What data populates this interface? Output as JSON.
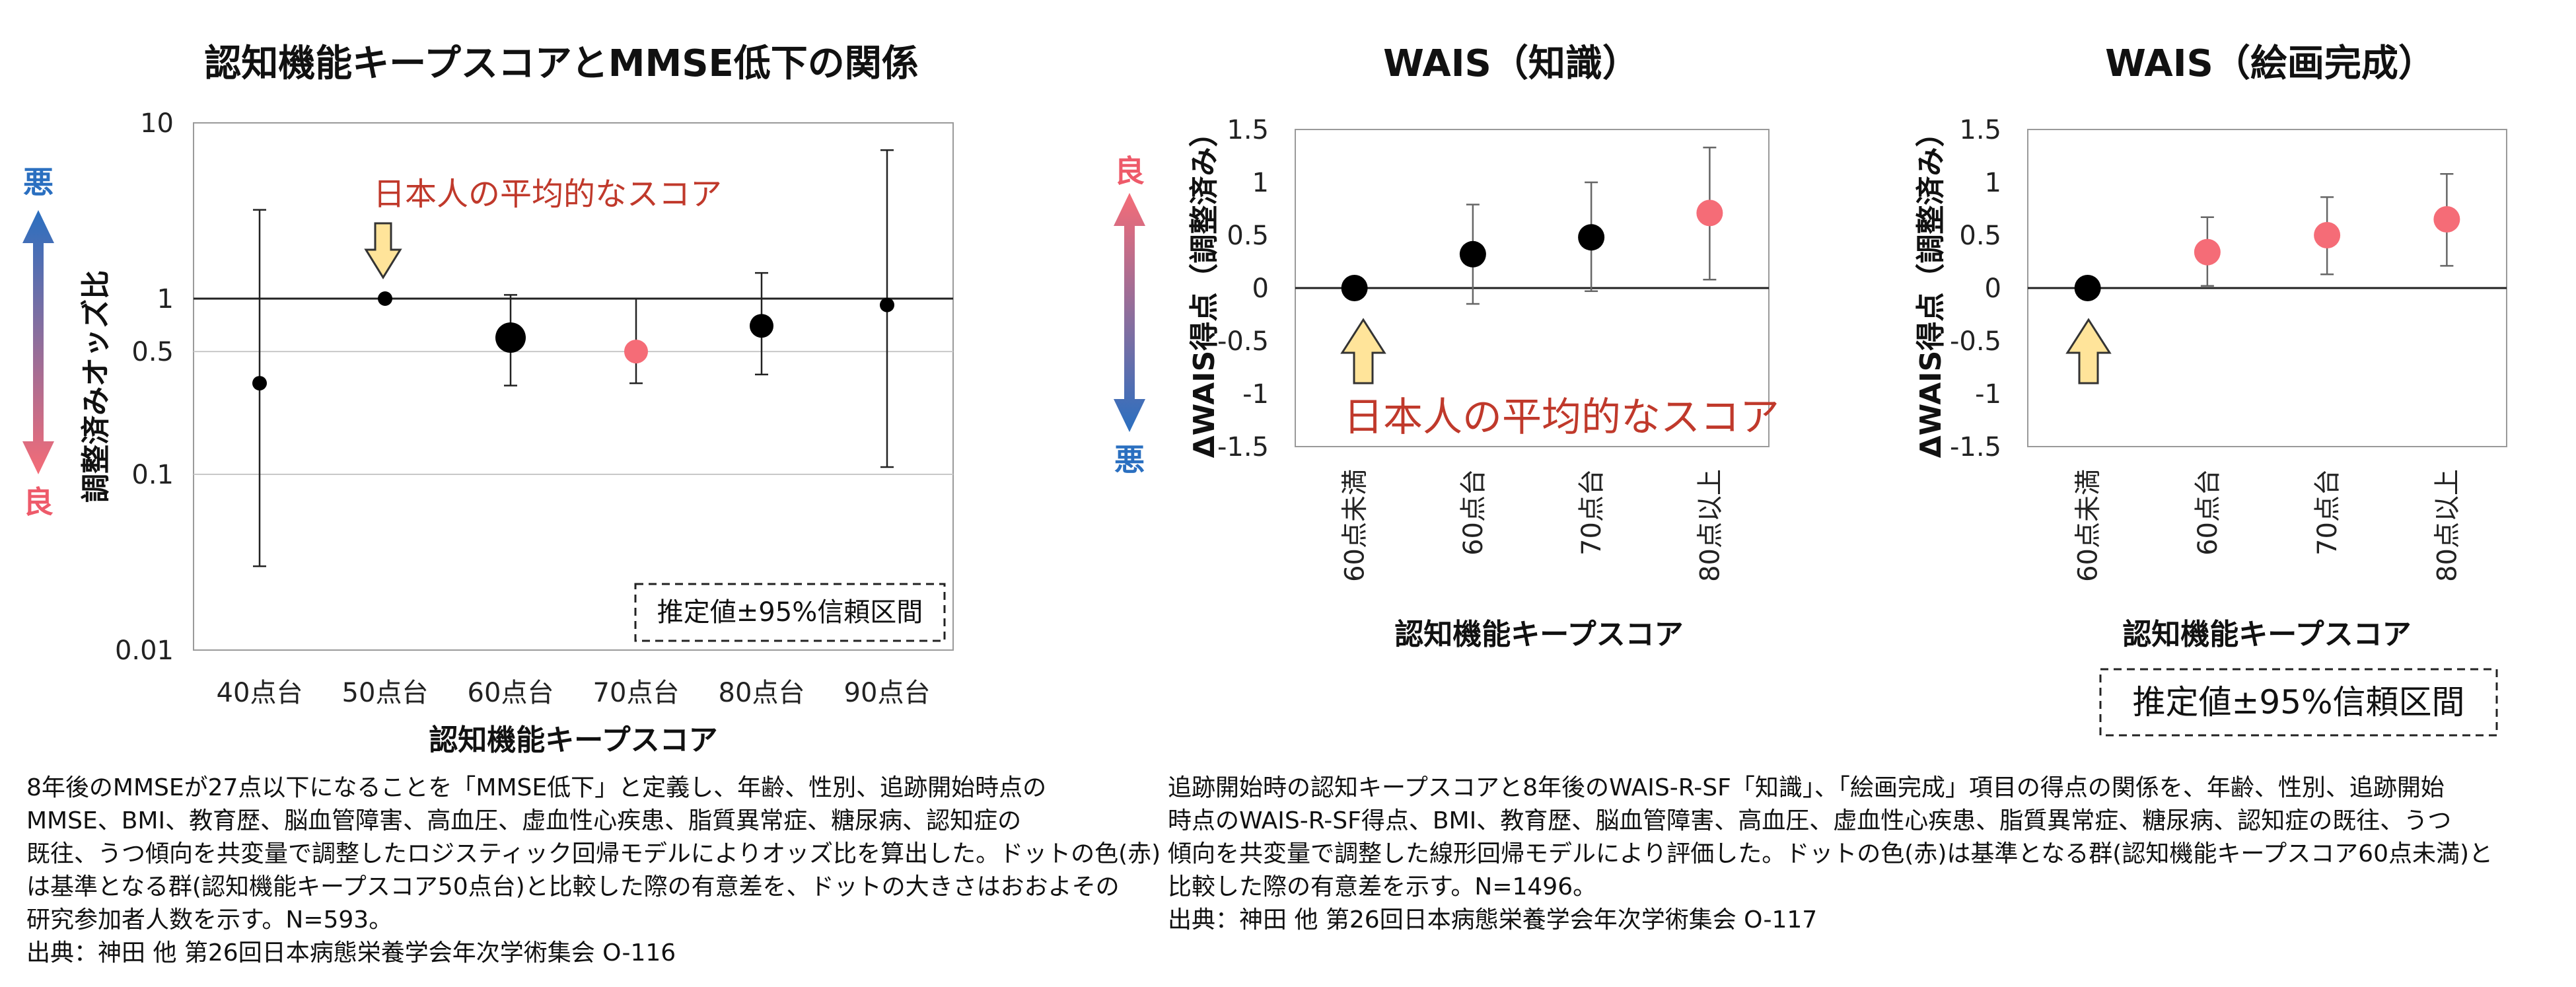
{
  "colors": {
    "black": "#000000",
    "red": "#f56c77",
    "arrow_fill": "#ffe49a",
    "arrow_stroke": "#333333",
    "gradient_good": "#f56c77",
    "gradient_bad": "#2a6fc0",
    "annotation": "#c0392b"
  },
  "chart_data": [
    {
      "type": "scatter",
      "title": "認知機能キープスコアとMMSE低下の関係",
      "xlabel": "認知機能キープスコア",
      "ylabel": "調整済みオッズ比",
      "yscale": "log",
      "ylim": [
        0.01,
        10
      ],
      "yticks": [
        "10",
        "1",
        "0.5",
        "0.1",
        "0.01"
      ],
      "ytick_values": [
        10,
        1,
        0.5,
        0.1,
        0.01
      ],
      "categories": [
        "40点台",
        "50点台",
        "60点台",
        "70点台",
        "80点台",
        "90点台"
      ],
      "values": [
        0.33,
        1.0,
        0.6,
        0.5,
        0.7,
        0.92
      ],
      "lower": [
        0.03,
        null,
        0.32,
        0.33,
        0.37,
        0.11
      ],
      "upper": [
        3.2,
        null,
        1.05,
        1.0,
        1.4,
        7.0
      ],
      "significant": [
        false,
        false,
        false,
        true,
        false,
        false
      ],
      "point_size": [
        "small",
        "small",
        "large",
        "medium",
        "medium",
        "small"
      ],
      "reference_line": 1,
      "good_label": "良",
      "bad_label": "悪",
      "annotation": "日本人の平均的なスコア",
      "legend": "推定値±95%信頼区間"
    },
    {
      "type": "scatter",
      "title": "WAIS（知識）",
      "xlabel": "認知機能キープスコア",
      "ylabel": "ΔWAIS得点（調整済み）",
      "ylim": [
        -1.5,
        1.5
      ],
      "yticks": [
        "1.5",
        "1",
        "0.5",
        "0",
        "-0.5",
        "-1",
        "-1.5"
      ],
      "ytick_values": [
        1.5,
        1,
        0.5,
        0,
        -0.5,
        -1,
        -1.5
      ],
      "categories": [
        "60点未満",
        "60点台",
        "70点台",
        "80点以上"
      ],
      "values": [
        0,
        0.32,
        0.48,
        0.71
      ],
      "lower": [
        null,
        -0.15,
        -0.03,
        0.08
      ],
      "upper": [
        null,
        0.79,
        1.0,
        1.33
      ],
      "significant": [
        false,
        false,
        false,
        true
      ],
      "good_label": "良",
      "bad_label": "悪",
      "annotation": "日本人の平均的なスコア"
    },
    {
      "type": "scatter",
      "title": "WAIS（絵画完成）",
      "xlabel": "認知機能キープスコア",
      "ylabel": "ΔWAIS得点（調整済み）",
      "ylim": [
        -1.5,
        1.5
      ],
      "yticks": [
        "1.5",
        "1",
        "0.5",
        "0",
        "-0.5",
        "-1",
        "-1.5"
      ],
      "ytick_values": [
        1.5,
        1,
        0.5,
        0,
        -0.5,
        -1,
        -1.5
      ],
      "categories": [
        "60点未満",
        "60点台",
        "70点台",
        "80点以上"
      ],
      "values": [
        0,
        0.34,
        0.5,
        0.65
      ],
      "lower": [
        null,
        0.02,
        0.13,
        0.21
      ],
      "upper": [
        null,
        0.67,
        0.86,
        1.08
      ],
      "significant": [
        false,
        true,
        true,
        true
      ],
      "legend": "推定値±95%信頼区間"
    }
  ],
  "captions": {
    "left": [
      "8年後のMMSEが27点以下になることを「MMSE低下」と定義し、年齢、性別、追跡開始時点の",
      "MMSE、BMI、教育歴、脳血管障害、高血圧、虚血性心疾患、脂質異常症、糖尿病、認知症の",
      "既往、うつ傾向を共変量で調整したロジスティック回帰モデルによりオッズ比を算出した。ドットの色(赤)",
      "は基準となる群(認知機能キープスコア50点台)と比較した際の有意差を、ドットの大きさはおおよその",
      "研究参加者人数を示す。N=593。",
      "出典：神田 他 第26回日本病態栄養学会年次学術集会 O-116"
    ],
    "right": [
      "追跡開始時の認知キープスコアと8年後のWAIS-R-SF「知識」、「絵画完成」項目の得点の関係を、年齢、性別、追跡開始",
      "時点のWAIS-R-SF得点、BMI、教育歴、脳血管障害、高血圧、虚血性心疾患、脂質異常症、糖尿病、認知症の既往、うつ",
      "傾向を共変量で調整した線形回帰モデルにより評価した。ドットの色(赤)は基準となる群(認知機能キープスコア60点未満)と",
      "比較した際の有意差を示す。N=1496。",
      "出典：神田 他 第26回日本病態栄養学会年次学術集会 O-117"
    ]
  }
}
